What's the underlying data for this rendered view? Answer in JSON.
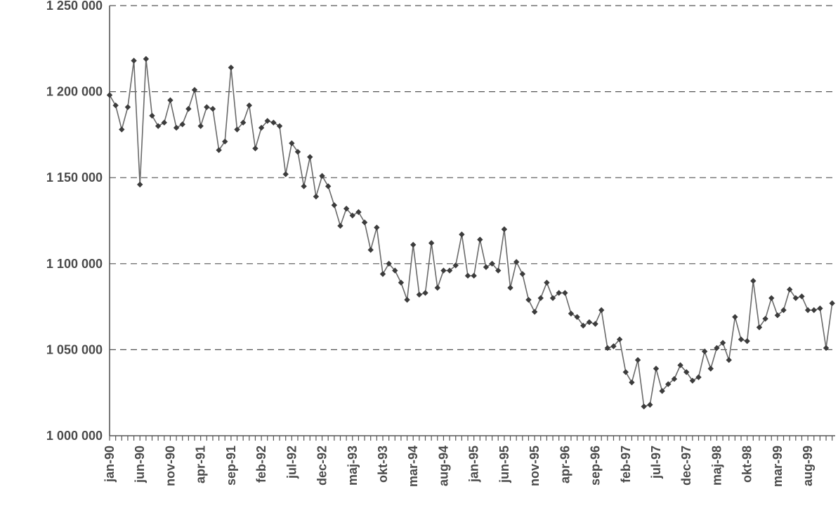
{
  "chart_data": {
    "type": "line",
    "title": "",
    "xlabel": "",
    "ylabel": "",
    "ylim": [
      1000000,
      1250000
    ],
    "yticks": [
      {
        "value": 1000000,
        "label": "1 000 000"
      },
      {
        "value": 1050000,
        "label": "1 050 000"
      },
      {
        "value": 1100000,
        "label": "1 100 000"
      },
      {
        "value": 1150000,
        "label": "1 150 000"
      },
      {
        "value": 1200000,
        "label": "1 200 000"
      },
      {
        "value": 1250000,
        "label": "1 250 000"
      }
    ],
    "grid": "horizontal dashed",
    "legend": "none",
    "xticks": [
      {
        "index": 0,
        "label": "jan-90"
      },
      {
        "index": 5,
        "label": "jun-90"
      },
      {
        "index": 10,
        "label": "nov-90"
      },
      {
        "index": 15,
        "label": "apr-91"
      },
      {
        "index": 20,
        "label": "sep-91"
      },
      {
        "index": 25,
        "label": "feb-92"
      },
      {
        "index": 30,
        "label": "jul-92"
      },
      {
        "index": 35,
        "label": "dec-92"
      },
      {
        "index": 40,
        "label": "maj-93"
      },
      {
        "index": 45,
        "label": "okt-93"
      },
      {
        "index": 50,
        "label": "mar-94"
      },
      {
        "index": 55,
        "label": "aug-94"
      },
      {
        "index": 60,
        "label": "jan-95"
      },
      {
        "index": 65,
        "label": "jun-95"
      },
      {
        "index": 70,
        "label": "nov-95"
      },
      {
        "index": 75,
        "label": "apr-96"
      },
      {
        "index": 80,
        "label": "sep-96"
      },
      {
        "index": 85,
        "label": "feb-97"
      },
      {
        "index": 90,
        "label": "jul-97"
      },
      {
        "index": 95,
        "label": "dec-97"
      },
      {
        "index": 100,
        "label": "maj-98"
      },
      {
        "index": 105,
        "label": "okt-98"
      },
      {
        "index": 110,
        "label": "mar-99"
      },
      {
        "index": 115,
        "label": "aug-99"
      }
    ],
    "series": [
      {
        "color": "#3c3c3c",
        "values": [
          1198000,
          1192000,
          1178000,
          1191000,
          1218000,
          1146000,
          1219000,
          1186000,
          1180000,
          1182000,
          1195000,
          1179000,
          1181000,
          1190000,
          1201000,
          1180000,
          1191000,
          1190000,
          1166000,
          1171000,
          1214000,
          1178000,
          1182000,
          1192000,
          1167000,
          1179000,
          1183000,
          1182000,
          1180000,
          1152000,
          1170000,
          1165000,
          1145000,
          1162000,
          1139000,
          1151000,
          1145000,
          1134000,
          1122000,
          1132000,
          1128000,
          1130000,
          1124000,
          1108000,
          1121000,
          1094000,
          1100000,
          1096000,
          1089000,
          1079000,
          1111000,
          1082000,
          1083000,
          1112000,
          1086000,
          1096000,
          1096000,
          1099000,
          1117000,
          1093000,
          1093000,
          1114000,
          1098000,
          1100000,
          1096000,
          1120000,
          1086000,
          1101000,
          1094000,
          1079000,
          1072000,
          1080000,
          1089000,
          1080000,
          1083000,
          1083000,
          1071000,
          1069000,
          1064000,
          1066000,
          1065000,
          1073000,
          1051000,
          1052000,
          1056000,
          1037000,
          1031000,
          1044000,
          1017000,
          1018000,
          1039000,
          1026000,
          1030000,
          1033000,
          1041000,
          1037000,
          1032000,
          1034000,
          1049000,
          1039000,
          1051000,
          1054000,
          1044000,
          1069000,
          1056000,
          1055000,
          1090000,
          1063000,
          1068000,
          1080000,
          1070000,
          1073000,
          1085000,
          1080000,
          1081000,
          1073000,
          1073000,
          1074000,
          1051000,
          1077000
        ]
      }
    ]
  }
}
